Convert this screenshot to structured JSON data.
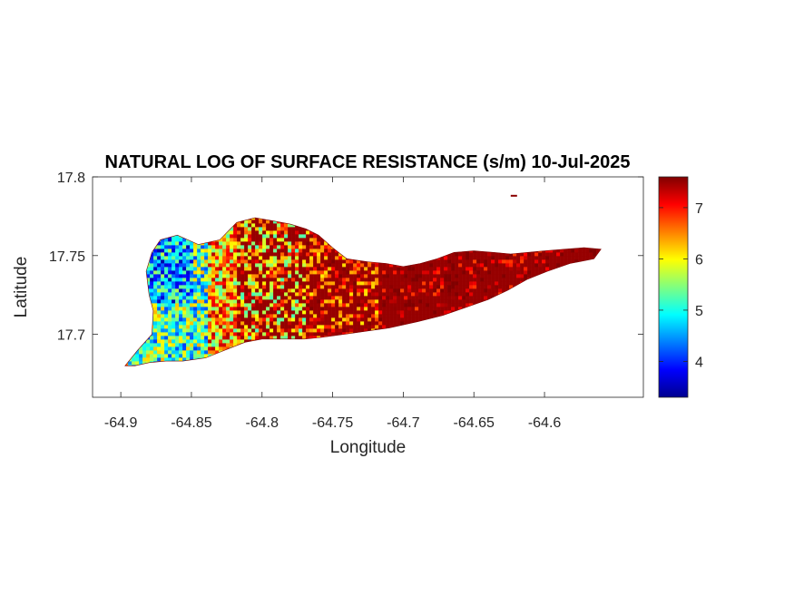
{
  "chart_data": {
    "type": "heatmap",
    "title": "NATURAL LOG OF SURFACE RESISTANCE (s/m) 10-Jul-2025",
    "xlabel": "Longitude",
    "ylabel": "Latitude",
    "xlim": [
      -64.92,
      -64.53
    ],
    "ylim": [
      17.66,
      17.8
    ],
    "xticks": [
      -64.9,
      -64.85,
      -64.8,
      -64.75,
      -64.7,
      -64.65,
      -64.6
    ],
    "xtick_labels": [
      "-64.9",
      "-64.85",
      "-64.8",
      "-64.75",
      "-64.7",
      "-64.65",
      "-64.6"
    ],
    "yticks": [
      17.7,
      17.75,
      17.8
    ],
    "ytick_labels": [
      "17.7",
      "17.75",
      "17.8"
    ],
    "colorbar": {
      "colormap": "jet",
      "range": [
        3.3,
        7.6
      ],
      "ticks": [
        4,
        5,
        6,
        7
      ],
      "tick_labels": [
        "4",
        "5",
        "6",
        "7"
      ]
    },
    "grid": false,
    "island_outline_lonlat": [
      [
        -64.897,
        17.68
      ],
      [
        -64.888,
        17.69
      ],
      [
        -64.878,
        17.7
      ],
      [
        -64.877,
        17.715
      ],
      [
        -64.88,
        17.725
      ],
      [
        -64.882,
        17.74
      ],
      [
        -64.878,
        17.752
      ],
      [
        -64.872,
        17.76
      ],
      [
        -64.86,
        17.763
      ],
      [
        -64.845,
        17.757
      ],
      [
        -64.83,
        17.76
      ],
      [
        -64.818,
        17.771
      ],
      [
        -64.805,
        17.774
      ],
      [
        -64.792,
        17.772
      ],
      [
        -64.78,
        17.77
      ],
      [
        -64.769,
        17.767
      ],
      [
        -64.76,
        17.763
      ],
      [
        -64.75,
        17.755
      ],
      [
        -64.74,
        17.748
      ],
      [
        -64.725,
        17.746
      ],
      [
        -64.712,
        17.745
      ],
      [
        -64.7,
        17.743
      ],
      [
        -64.688,
        17.745
      ],
      [
        -64.676,
        17.748
      ],
      [
        -64.664,
        17.752
      ],
      [
        -64.65,
        17.753
      ],
      [
        -64.636,
        17.752
      ],
      [
        -64.624,
        17.751
      ],
      [
        -64.612,
        17.752
      ],
      [
        -64.6,
        17.753
      ],
      [
        -64.586,
        17.754
      ],
      [
        -64.572,
        17.755
      ],
      [
        -64.56,
        17.754
      ],
      [
        -64.565,
        17.748
      ],
      [
        -64.582,
        17.745
      ],
      [
        -64.598,
        17.74
      ],
      [
        -64.612,
        17.735
      ],
      [
        -64.626,
        17.728
      ],
      [
        -64.64,
        17.722
      ],
      [
        -64.656,
        17.717
      ],
      [
        -64.672,
        17.712
      ],
      [
        -64.69,
        17.708
      ],
      [
        -64.71,
        17.704
      ],
      [
        -64.726,
        17.702
      ],
      [
        -64.742,
        17.7
      ],
      [
        -64.758,
        17.698
      ],
      [
        -64.77,
        17.697
      ],
      [
        -64.786,
        17.697
      ],
      [
        -64.8,
        17.697
      ],
      [
        -64.812,
        17.695
      ],
      [
        -64.826,
        17.69
      ],
      [
        -64.84,
        17.685
      ],
      [
        -64.856,
        17.683
      ],
      [
        -64.868,
        17.683
      ],
      [
        -64.88,
        17.682
      ],
      [
        -64.89,
        17.68
      ],
      [
        -64.897,
        17.68
      ]
    ],
    "offshore_islet_lonlat": [
      -64.622,
      17.788
    ],
    "value_regions": [
      {
        "region": "west",
        "lon_range": [
          -64.897,
          -64.84
        ],
        "typical_value": 5.2
      },
      {
        "region": "central-west",
        "lon_range": [
          -64.84,
          -64.77
        ],
        "typical_value": 6.3
      },
      {
        "region": "central",
        "lon_range": [
          -64.77,
          -64.72
        ],
        "typical_value": 6.9
      },
      {
        "region": "east",
        "lon_range": [
          -64.72,
          -64.56
        ],
        "typical_value": 7.4
      }
    ]
  }
}
